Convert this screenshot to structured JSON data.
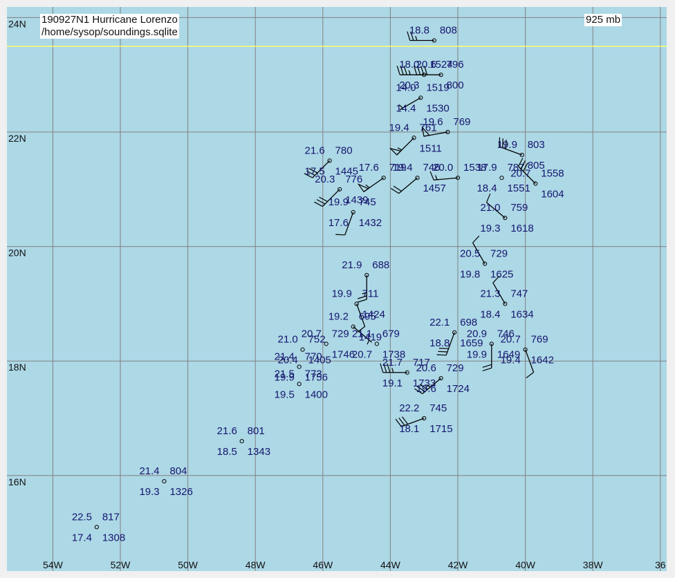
{
  "title": {
    "line1": "190927N1 Hurricane Lorenzo",
    "line2": "/home/sysop/soundings.sqlite",
    "level": "925 mb"
  },
  "colors": {
    "ocean": "#add8e6",
    "grid": "#808080",
    "text": "#15156e",
    "stroke": "#000000",
    "highlight_line": "#ffff66"
  },
  "lat_labels": [
    "24N",
    "22N",
    "20N",
    "18N",
    "16N"
  ],
  "lon_labels": [
    "54W",
    "52W",
    "50W",
    "48W",
    "46W",
    "44W",
    "42W",
    "40W",
    "38W",
    "36"
  ],
  "stations": [
    {
      "lon": -42.7,
      "lat": 23.6,
      "temp": "18.8",
      "dew": "",
      "height": "808",
      "pres": "",
      "wdir": 270,
      "wspd": 25
    },
    {
      "lon": -43.0,
      "lat": 23.0,
      "temp": "18.0",
      "dew": "20.3",
      "height": "1524",
      "pres": "",
      "wdir": 270,
      "wspd": 35
    },
    {
      "lon": -42.5,
      "lat": 23.0,
      "temp": "20.6",
      "dew": "",
      "height": "796",
      "pres": "800",
      "wdir": 270,
      "wspd": 40
    },
    {
      "lon": -43.1,
      "lat": 22.6,
      "temp": "14.0",
      "dew": "14.4",
      "height": "1519",
      "pres": "1530",
      "wdir": 240,
      "wspd": 5
    },
    {
      "lon": -42.3,
      "lat": 22.0,
      "temp": "19.6",
      "dew": "",
      "height": "769",
      "pres": "",
      "wdir": 260,
      "wspd": 50
    },
    {
      "lon": -43.3,
      "lat": 21.9,
      "temp": "19.4",
      "dew": "",
      "height": "761",
      "pres": "1511",
      "wdir": 225,
      "wspd": 55
    },
    {
      "lon": -42.0,
      "lat": 21.2,
      "temp": "20.0",
      "dew": "",
      "height": "1538",
      "pres": "",
      "wdir": 265,
      "wspd": 15
    },
    {
      "lon": -44.2,
      "lat": 21.2,
      "temp": "17.6",
      "dew": "",
      "height": "719",
      "pres": "",
      "wdir": 235,
      "wspd": 55
    },
    {
      "lon": -45.5,
      "lat": 21.0,
      "temp": "20.3",
      "dew": "",
      "height": "776",
      "pres": "1439",
      "wdir": 225,
      "wspd": 30
    },
    {
      "lon": -45.8,
      "lat": 21.5,
      "temp": "21.6",
      "dew": "17.5",
      "height": "780",
      "pres": "1445",
      "wdir": 225,
      "wspd": 30
    },
    {
      "lon": -43.2,
      "lat": 21.2,
      "temp": "19.4",
      "dew": "",
      "height": "746",
      "pres": "1457",
      "wdir": 230,
      "wspd": 20
    },
    {
      "lon": -40.1,
      "lat": 21.6,
      "temp": "19.9",
      "dew": "",
      "height": "803",
      "pres": "805",
      "wdir": 290,
      "wspd": 30
    },
    {
      "lon": -40.7,
      "lat": 21.2,
      "temp": "17.9",
      "dew": "18.4",
      "height": "787",
      "pres": "1551",
      "wdir": 0,
      "wspd": 0
    },
    {
      "lon": -39.7,
      "lat": 21.1,
      "temp": "20.7",
      "dew": "",
      "height": "1558",
      "pres": "1604",
      "wdir": 315,
      "wspd": 30
    },
    {
      "lon": -40.6,
      "lat": 20.5,
      "temp": "21.0",
      "dew": "19.3",
      "height": "759",
      "pres": "1618",
      "wdir": 310,
      "wspd": 10
    },
    {
      "lon": -45.1,
      "lat": 20.6,
      "temp": "19.9",
      "dew": "17.6",
      "height": "745",
      "pres": "1432",
      "wdir": 200,
      "wspd": 10
    },
    {
      "lon": -41.2,
      "lat": 19.7,
      "temp": "20.5",
      "dew": "19.8",
      "height": "729",
      "pres": "1625",
      "wdir": 330,
      "wspd": 10
    },
    {
      "lon": -44.7,
      "lat": 19.5,
      "temp": "21.9",
      "dew": "",
      "height": "688",
      "pres": "",
      "wdir": 180,
      "wspd": 25
    },
    {
      "lon": -45.0,
      "lat": 19.0,
      "temp": "19.9",
      "dew": "",
      "height": "711",
      "pres": "1424",
      "wdir": 160,
      "wspd": 10
    },
    {
      "lon": -40.6,
      "lat": 19.0,
      "temp": "21.3",
      "dew": "18.4",
      "height": "747",
      "pres": "1634",
      "wdir": 330,
      "wspd": 10
    },
    {
      "lon": -45.1,
      "lat": 18.6,
      "temp": "19.2",
      "dew": "",
      "height": "695",
      "pres": "1419",
      "wdir": 130,
      "wspd": 5
    },
    {
      "lon": -42.1,
      "lat": 18.5,
      "temp": "22.1",
      "dew": "18.8",
      "height": "698",
      "pres": "1659",
      "wdir": 200,
      "wspd": 30
    },
    {
      "lon": -41.0,
      "lat": 18.3,
      "temp": "20.9",
      "dew": "19.9",
      "height": "746",
      "pres": "1649",
      "wdir": 180,
      "wspd": 20
    },
    {
      "lon": -40.0,
      "lat": 18.2,
      "temp": "20.7",
      "dew": "19.4",
      "height": "769",
      "pres": "1642",
      "wdir": 160,
      "wspd": 10
    },
    {
      "lon": -44.4,
      "lat": 18.3,
      "temp": "21.1",
      "dew": "20.7",
      "height": "679",
      "pres": "1738",
      "wdir": 0,
      "wspd": 0
    },
    {
      "lon": -45.9,
      "lat": 18.3,
      "temp": "20.7",
      "dew": "",
      "height": "729",
      "pres": "1746",
      "wdir": 0,
      "wspd": 0
    },
    {
      "lon": -46.6,
      "lat": 18.2,
      "temp": "21.0",
      "dew": "20.4",
      "height": "752",
      "pres": "1405",
      "wdir": 0,
      "wspd": 0
    },
    {
      "lon": -46.7,
      "lat": 17.9,
      "temp": "21.4",
      "dew": "19.9",
      "height": "770",
      "pres": "1756",
      "wdir": 0,
      "wspd": 0
    },
    {
      "lon": -46.7,
      "lat": 17.6,
      "temp": "21.5",
      "dew": "19.5",
      "height": "773",
      "pres": "1400",
      "wdir": 0,
      "wspd": 0
    },
    {
      "lon": -43.5,
      "lat": 17.8,
      "temp": "21.7",
      "dew": "19.1",
      "height": "717",
      "pres": "1733",
      "wdir": 270,
      "wspd": 35
    },
    {
      "lon": -42.5,
      "lat": 17.7,
      "temp": "20.6",
      "dew": "19.6",
      "height": "729",
      "pres": "1724",
      "wdir": 230,
      "wspd": 35
    },
    {
      "lon": -43.0,
      "lat": 17.0,
      "temp": "22.2",
      "dew": "18.1",
      "height": "745",
      "pres": "1715",
      "wdir": 250,
      "wspd": 30
    },
    {
      "lon": -48.4,
      "lat": 16.6,
      "temp": "21.6",
      "dew": "18.5",
      "height": "801",
      "pres": "1343",
      "wdir": 0,
      "wspd": 0
    },
    {
      "lon": -50.7,
      "lat": 15.9,
      "temp": "21.4",
      "dew": "19.3",
      "height": "804",
      "pres": "1326",
      "wdir": 0,
      "wspd": 0
    },
    {
      "lon": -52.7,
      "lat": 15.1,
      "temp": "22.5",
      "dew": "17.4",
      "height": "817",
      "pres": "1308",
      "wdir": 0,
      "wspd": 0
    }
  ]
}
